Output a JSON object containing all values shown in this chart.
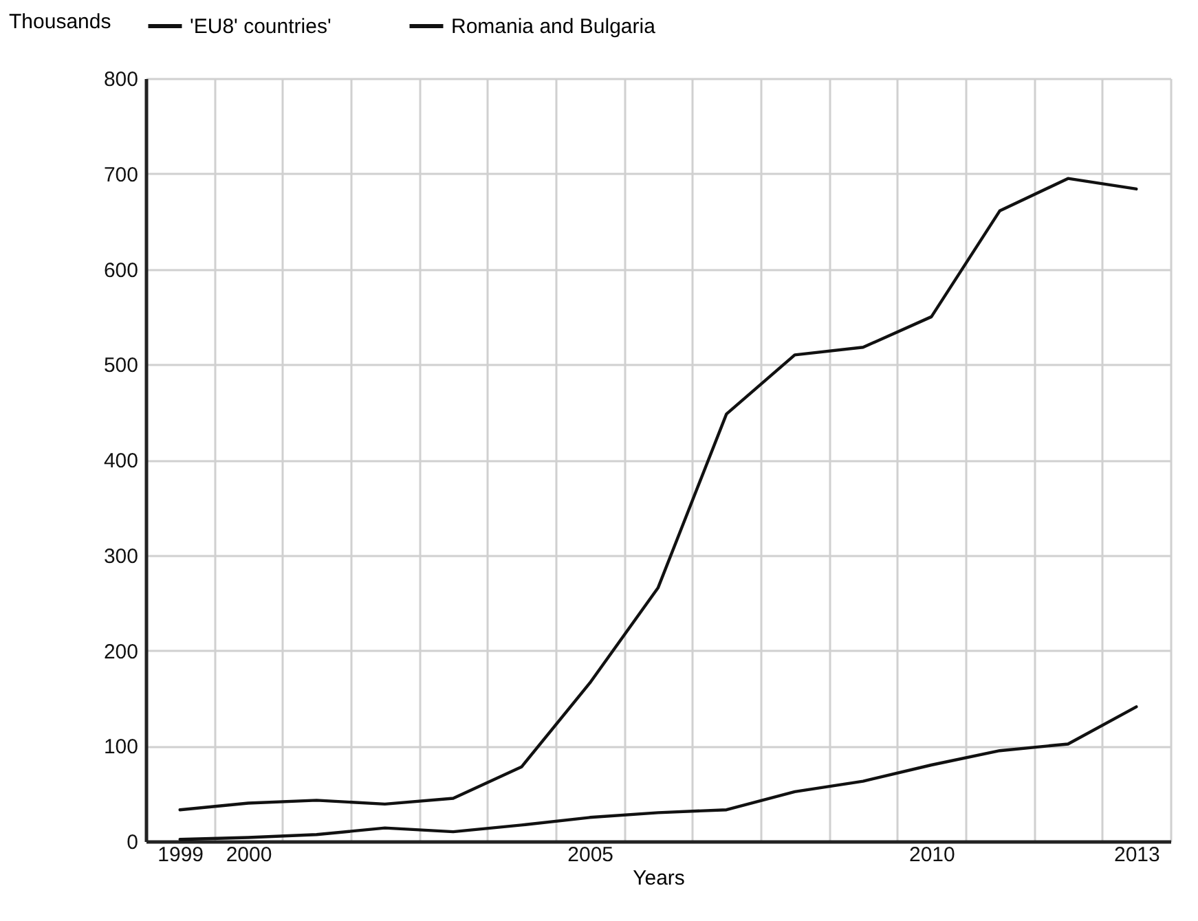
{
  "chart_data": {
    "type": "line",
    "xlabel": "Years",
    "ylabel": "Thousands",
    "categories": [
      "1999",
      "2000",
      null,
      null,
      null,
      null,
      "2005",
      null,
      null,
      null,
      null,
      "2010",
      null,
      null,
      "2013"
    ],
    "series": [
      {
        "name": "'EU8' countries'",
        "color": "#111111",
        "values": [
          33,
          40,
          43,
          39,
          45,
          78,
          166,
          266,
          448,
          510,
          518,
          550,
          661,
          695,
          684
        ]
      },
      {
        "name": "Romania and Bulgaria",
        "color": "#111111",
        "values": [
          2,
          4,
          7,
          14,
          10,
          17,
          25,
          30,
          33,
          52,
          63,
          80,
          95,
          102,
          141
        ]
      }
    ],
    "ylim": [
      0,
      800
    ],
    "yticks": [
      0,
      100,
      200,
      300,
      400,
      500,
      600,
      700,
      800
    ],
    "grid": true,
    "legend": "top",
    "line_style": "solid",
    "marker": "none"
  }
}
